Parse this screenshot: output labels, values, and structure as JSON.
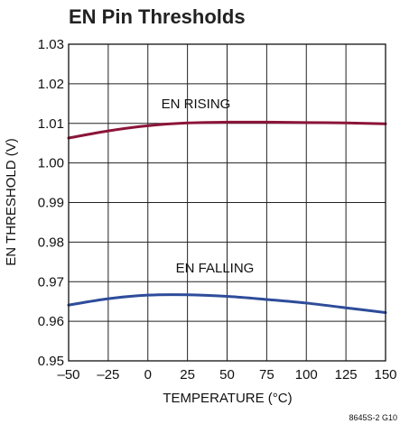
{
  "chart_data": {
    "type": "line",
    "title": "EN Pin Thresholds",
    "xlabel": "TEMPERATURE (°C)",
    "ylabel": "EN THRESHOLD (V)",
    "xlim": [
      -50,
      150
    ],
    "ylim": [
      0.95,
      1.03
    ],
    "xticks": [
      -50,
      -25,
      0,
      25,
      50,
      75,
      100,
      125,
      150
    ],
    "xtick_labels": [
      "–50",
      "–25",
      "0",
      "25",
      "50",
      "75",
      "100",
      "125",
      "150"
    ],
    "yticks": [
      0.95,
      0.96,
      0.97,
      0.98,
      0.99,
      1.0,
      1.01,
      1.02,
      1.03
    ],
    "ytick_labels": [
      "0.95",
      "0.96",
      "0.97",
      "0.98",
      "0.99",
      "1.00",
      "1.01",
      "1.02",
      "1.03"
    ],
    "grid": true,
    "series": [
      {
        "name": "EN RISING",
        "color": "#8b1538",
        "x": [
          -50,
          -25,
          0,
          25,
          50,
          75,
          100,
          125,
          150
        ],
        "y": [
          1.0063,
          1.0081,
          1.0094,
          1.0101,
          1.0103,
          1.0103,
          1.0102,
          1.0101,
          1.0099
        ]
      },
      {
        "name": "EN FALLING",
        "color": "#2e4c9a",
        "x": [
          -50,
          -25,
          0,
          25,
          50,
          75,
          100,
          125,
          150
        ],
        "y": [
          0.9641,
          0.9657,
          0.9666,
          0.9667,
          0.9663,
          0.9655,
          0.9646,
          0.9634,
          0.9622
        ]
      }
    ],
    "figure_id": "8645S-2 G10"
  }
}
